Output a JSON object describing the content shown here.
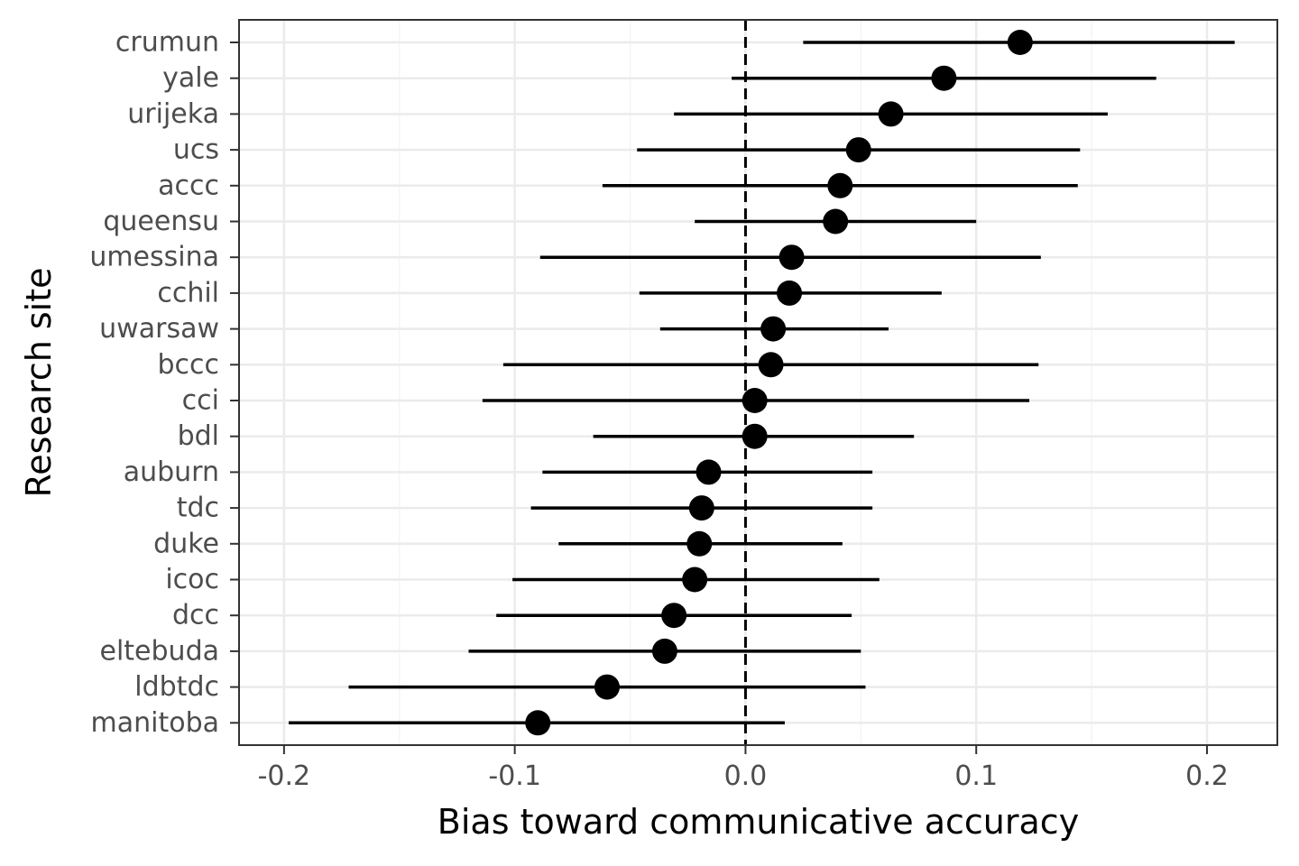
{
  "chart_data": {
    "type": "forest",
    "xlabel": "Bias toward communicative accuracy",
    "ylabel": "Research site",
    "xlim": [
      -0.2195,
      0.2305
    ],
    "x_ticks": [
      {
        "value": -0.2,
        "label": "-0.2"
      },
      {
        "value": -0.1,
        "label": "-0.1"
      },
      {
        "value": 0.0,
        "label": "0.0"
      },
      {
        "value": 0.1,
        "label": "0.1"
      },
      {
        "value": 0.2,
        "label": "0.2"
      }
    ],
    "reference_line": 0,
    "grid": true,
    "sites": [
      {
        "label": "crumun",
        "estimate": 0.119,
        "lower": 0.025,
        "upper": 0.212
      },
      {
        "label": "yale",
        "estimate": 0.086,
        "lower": -0.006,
        "upper": 0.178
      },
      {
        "label": "urijeka",
        "estimate": 0.063,
        "lower": -0.031,
        "upper": 0.157
      },
      {
        "label": "ucs",
        "estimate": 0.049,
        "lower": -0.047,
        "upper": 0.145
      },
      {
        "label": "accc",
        "estimate": 0.041,
        "lower": -0.062,
        "upper": 0.144
      },
      {
        "label": "queensu",
        "estimate": 0.039,
        "lower": -0.022,
        "upper": 0.1
      },
      {
        "label": "umessina",
        "estimate": 0.02,
        "lower": -0.089,
        "upper": 0.128
      },
      {
        "label": "cchil",
        "estimate": 0.019,
        "lower": -0.046,
        "upper": 0.085
      },
      {
        "label": "uwarsaw",
        "estimate": 0.012,
        "lower": -0.037,
        "upper": 0.062
      },
      {
        "label": "bccc",
        "estimate": 0.011,
        "lower": -0.105,
        "upper": 0.127
      },
      {
        "label": "cci",
        "estimate": 0.004,
        "lower": -0.114,
        "upper": 0.123
      },
      {
        "label": "bdl",
        "estimate": 0.004,
        "lower": -0.066,
        "upper": 0.073
      },
      {
        "label": "auburn",
        "estimate": -0.016,
        "lower": -0.088,
        "upper": 0.055
      },
      {
        "label": "tdc",
        "estimate": -0.019,
        "lower": -0.093,
        "upper": 0.055
      },
      {
        "label": "duke",
        "estimate": -0.02,
        "lower": -0.081,
        "upper": 0.042
      },
      {
        "label": "icoc",
        "estimate": -0.022,
        "lower": -0.101,
        "upper": 0.058
      },
      {
        "label": "dcc",
        "estimate": -0.031,
        "lower": -0.108,
        "upper": 0.046
      },
      {
        "label": "eltebuda",
        "estimate": -0.035,
        "lower": -0.12,
        "upper": 0.05
      },
      {
        "label": "ldbtdc",
        "estimate": -0.06,
        "lower": -0.172,
        "upper": 0.052
      },
      {
        "label": "manitoba",
        "estimate": -0.09,
        "lower": -0.198,
        "upper": 0.017
      }
    ],
    "colors": {
      "point": "#000000",
      "interval": "#000000",
      "reference_line": "#000000",
      "grid_major": "#ebebeb",
      "grid_minor": "#f5f5f5",
      "panel_border": "#333333",
      "tick_text": "#4d4d4d"
    }
  }
}
